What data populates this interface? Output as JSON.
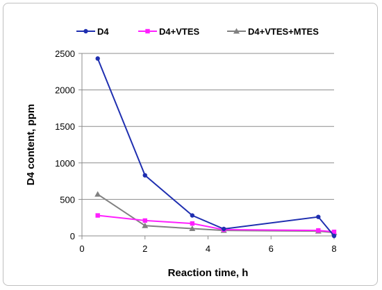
{
  "chart_data": {
    "type": "line",
    "title": "",
    "xlabel": "Reaction time, h",
    "ylabel": "D4 content, ppm",
    "xlim": [
      0,
      8
    ],
    "ylim": [
      0,
      2500
    ],
    "xticks": [
      0,
      2,
      4,
      6,
      8
    ],
    "yticks": [
      0,
      500,
      1000,
      1500,
      2000,
      2500
    ],
    "grid": "horizontal",
    "legend_position": "top",
    "series": [
      {
        "name": "D4",
        "color": "#1f2fb0",
        "marker": "circle",
        "x": [
          0.5,
          2,
          3.5,
          4.5,
          7.5,
          8
        ],
        "y": [
          2430,
          830,
          280,
          95,
          260,
          0
        ]
      },
      {
        "name": "D4+VTES",
        "color": "#ff1fff",
        "marker": "square",
        "x": [
          0.5,
          2,
          3.5,
          4.5,
          7.5,
          8
        ],
        "y": [
          280,
          210,
          170,
          85,
          75,
          55
        ]
      },
      {
        "name": "D4+VTES+MTES",
        "color": "#808080",
        "marker": "triangle",
        "x": [
          0.5,
          2,
          3.5,
          4.5,
          7.5,
          8
        ],
        "y": [
          570,
          140,
          100,
          75,
          65,
          45
        ]
      }
    ]
  }
}
